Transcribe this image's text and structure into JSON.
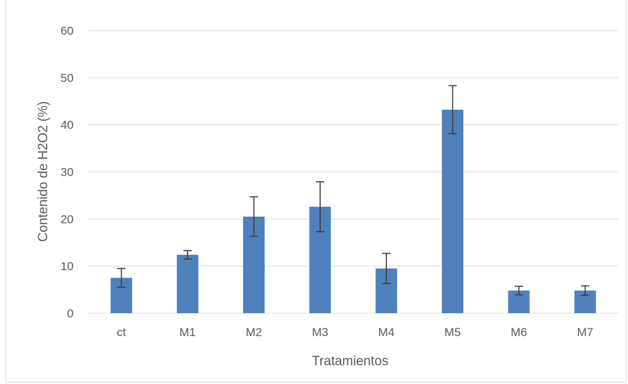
{
  "chart_data": {
    "type": "bar",
    "title": "",
    "xlabel": "Tratamientos",
    "ylabel": "Contenido de H2O2 (%)",
    "ylim": [
      0,
      60
    ],
    "yticks": [
      0,
      10,
      20,
      30,
      40,
      50,
      60
    ],
    "grid": true,
    "legend": "none",
    "categories": [
      "ct",
      "M1",
      "M2",
      "M3",
      "M4",
      "M5",
      "M6",
      "M7"
    ],
    "values": [
      7.5,
      12.4,
      20.5,
      22.6,
      9.5,
      43.2,
      4.8,
      4.8
    ],
    "error": [
      2.0,
      0.9,
      4.2,
      5.3,
      3.2,
      5.1,
      0.9,
      1.0
    ],
    "bar_color": "#4f81bd",
    "error_color": "#404040",
    "grid_color": "#d9d9d9"
  }
}
